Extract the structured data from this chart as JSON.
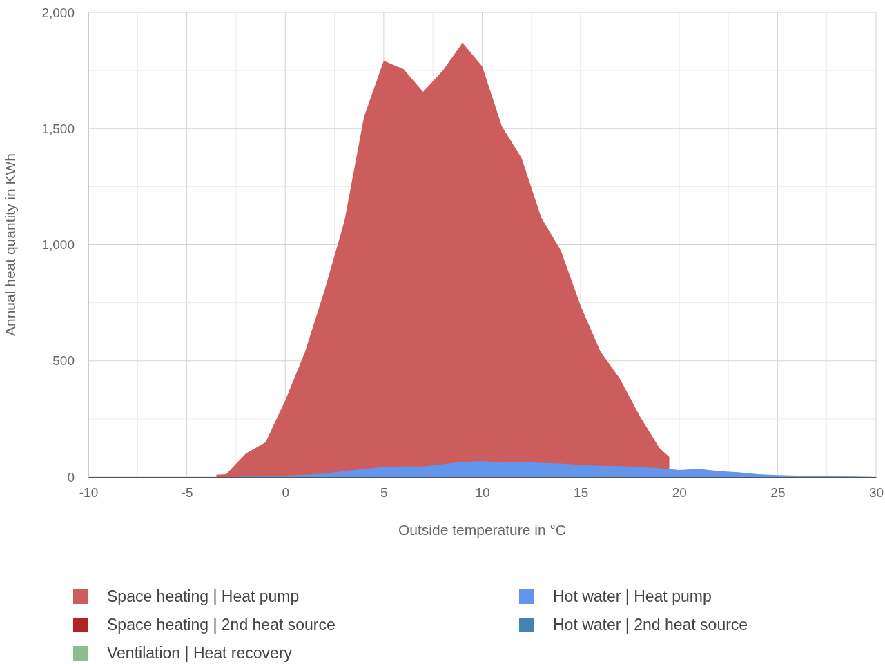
{
  "chart_data": {
    "type": "area",
    "xlabel": "Outside temperature in °C",
    "ylabel": "Annual heat quantity in KWh",
    "xlim": [
      -10,
      30
    ],
    "xticks": [
      -10,
      {
        "value": -7.5,
        "label": null
      },
      -5,
      {
        "value": -2.5,
        "label": null
      },
      0,
      {
        "value": 2.5,
        "label": null
      },
      5,
      {
        "value": 7.5,
        "label": null
      },
      10,
      {
        "value": 12.5,
        "label": null
      },
      15,
      {
        "value": 17.5,
        "label": null
      },
      20,
      {
        "value": 22.5,
        "label": null
      },
      25,
      {
        "value": 27.5,
        "label": null
      },
      30
    ],
    "ylim": [
      0,
      2000
    ],
    "yticks": [
      {
        "value": 0,
        "label": "0"
      },
      {
        "value": 250,
        "label": null
      },
      {
        "value": 500,
        "label": "500"
      },
      {
        "value": 750,
        "label": null
      },
      {
        "value": 1000,
        "label": "1,000"
      },
      {
        "value": 1250,
        "label": null
      },
      {
        "value": 1500,
        "label": "1,500"
      },
      {
        "value": 1750,
        "label": null
      },
      {
        "value": 2000,
        "label": "2,000"
      }
    ],
    "grid": true,
    "legend": "bottom",
    "series": [
      {
        "name": "Space heating | Heat pump",
        "color": "#cd5c5c",
        "x": [
          -3.5,
          -3,
          -2,
          -1,
          0,
          1,
          2,
          3,
          4,
          5,
          6,
          7,
          8,
          9,
          10,
          11,
          12,
          13,
          14,
          15,
          16,
          17,
          18,
          19,
          19.5
        ],
        "values": [
          10,
          12,
          101,
          149,
          330,
          538,
          805,
          1100,
          1551,
          1792,
          1756,
          1658,
          1750,
          1869,
          1768,
          1510,
          1373,
          1117,
          974,
          737,
          541,
          422,
          262,
          125,
          86
        ]
      },
      {
        "name": "Space heating | 2nd heat source",
        "color": "#b22222"
      },
      {
        "name": "Ventilation | Heat recovery",
        "color": "#8fbc8f"
      },
      {
        "name": "Hot water | Heat pump",
        "color": "#6495ed",
        "x": [
          -3.5,
          -3,
          -2,
          -1,
          0,
          1,
          2,
          3,
          4,
          5,
          6,
          7,
          8,
          9,
          10,
          11,
          12,
          13,
          14,
          15,
          16,
          17,
          18,
          19,
          20,
          21,
          22,
          23,
          24,
          25,
          26,
          27,
          28,
          29,
          30
        ],
        "values": [
          0,
          0,
          2,
          3,
          5,
          10,
          15,
          25,
          35,
          42,
          45,
          45,
          55,
          65,
          68,
          62,
          65,
          60,
          58,
          52,
          48,
          47,
          42,
          38,
          30,
          35,
          25,
          20,
          12,
          8,
          6,
          5,
          3,
          2,
          0
        ]
      },
      {
        "name": "Hot water | 2nd heat source",
        "color": "#4682b4"
      }
    ]
  }
}
